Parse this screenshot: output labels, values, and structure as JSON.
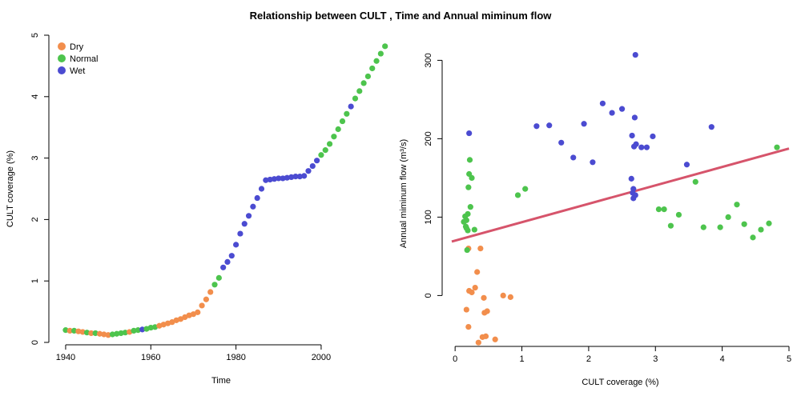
{
  "title": "Relationship between CULT , Time and Annual miminum flow",
  "colors": {
    "Dry": "#F28E4C",
    "Normal": "#4DC44D",
    "Wet": "#4B4BD1",
    "regression": "#D6546B"
  },
  "chart_data": [
    {
      "type": "scatter",
      "xlabel": "Time",
      "ylabel": "CULT coverage (%)",
      "xlim": [
        1937,
        2016
      ],
      "ylim": [
        0,
        5
      ],
      "xticks": [
        1940,
        1960,
        1980,
        2000
      ],
      "yticks": [
        0,
        1,
        2,
        3,
        4,
        5
      ],
      "legend": {
        "placement": "top-left",
        "entries": [
          "Dry",
          "Normal",
          "Wet"
        ]
      },
      "points": [
        {
          "x": 1940,
          "y": 0.2,
          "c": "Normal"
        },
        {
          "x": 1941,
          "y": 0.19,
          "c": "Dry"
        },
        {
          "x": 1942,
          "y": 0.19,
          "c": "Normal"
        },
        {
          "x": 1943,
          "y": 0.18,
          "c": "Dry"
        },
        {
          "x": 1944,
          "y": 0.17,
          "c": "Dry"
        },
        {
          "x": 1945,
          "y": 0.16,
          "c": "Normal"
        },
        {
          "x": 1946,
          "y": 0.15,
          "c": "Dry"
        },
        {
          "x": 1947,
          "y": 0.15,
          "c": "Normal"
        },
        {
          "x": 1948,
          "y": 0.14,
          "c": "Dry"
        },
        {
          "x": 1949,
          "y": 0.13,
          "c": "Dry"
        },
        {
          "x": 1950,
          "y": 0.12,
          "c": "Dry"
        },
        {
          "x": 1951,
          "y": 0.13,
          "c": "Normal"
        },
        {
          "x": 1952,
          "y": 0.14,
          "c": "Normal"
        },
        {
          "x": 1953,
          "y": 0.15,
          "c": "Normal"
        },
        {
          "x": 1954,
          "y": 0.16,
          "c": "Normal"
        },
        {
          "x": 1955,
          "y": 0.17,
          "c": "Dry"
        },
        {
          "x": 1956,
          "y": 0.19,
          "c": "Normal"
        },
        {
          "x": 1957,
          "y": 0.2,
          "c": "Normal"
        },
        {
          "x": 1958,
          "y": 0.21,
          "c": "Wet"
        },
        {
          "x": 1959,
          "y": 0.22,
          "c": "Normal"
        },
        {
          "x": 1960,
          "y": 0.24,
          "c": "Normal"
        },
        {
          "x": 1961,
          "y": 0.25,
          "c": "Normal"
        },
        {
          "x": 1962,
          "y": 0.27,
          "c": "Dry"
        },
        {
          "x": 1963,
          "y": 0.29,
          "c": "Dry"
        },
        {
          "x": 1964,
          "y": 0.31,
          "c": "Dry"
        },
        {
          "x": 1965,
          "y": 0.33,
          "c": "Dry"
        },
        {
          "x": 1966,
          "y": 0.36,
          "c": "Dry"
        },
        {
          "x": 1967,
          "y": 0.38,
          "c": "Dry"
        },
        {
          "x": 1968,
          "y": 0.41,
          "c": "Dry"
        },
        {
          "x": 1969,
          "y": 0.44,
          "c": "Dry"
        },
        {
          "x": 1970,
          "y": 0.46,
          "c": "Dry"
        },
        {
          "x": 1971,
          "y": 0.49,
          "c": "Dry"
        },
        {
          "x": 1972,
          "y": 0.6,
          "c": "Dry"
        },
        {
          "x": 1973,
          "y": 0.7,
          "c": "Dry"
        },
        {
          "x": 1974,
          "y": 0.82,
          "c": "Dry"
        },
        {
          "x": 1975,
          "y": 0.94,
          "c": "Normal"
        },
        {
          "x": 1976,
          "y": 1.05,
          "c": "Normal"
        },
        {
          "x": 1977,
          "y": 1.22,
          "c": "Wet"
        },
        {
          "x": 1978,
          "y": 1.31,
          "c": "Wet"
        },
        {
          "x": 1979,
          "y": 1.41,
          "c": "Wet"
        },
        {
          "x": 1980,
          "y": 1.59,
          "c": "Wet"
        },
        {
          "x": 1981,
          "y": 1.77,
          "c": "Wet"
        },
        {
          "x": 1982,
          "y": 1.93,
          "c": "Wet"
        },
        {
          "x": 1983,
          "y": 2.06,
          "c": "Wet"
        },
        {
          "x": 1984,
          "y": 2.21,
          "c": "Wet"
        },
        {
          "x": 1985,
          "y": 2.35,
          "c": "Wet"
        },
        {
          "x": 1986,
          "y": 2.5,
          "c": "Wet"
        },
        {
          "x": 1987,
          "y": 2.64,
          "c": "Wet"
        },
        {
          "x": 1988,
          "y": 2.65,
          "c": "Wet"
        },
        {
          "x": 1989,
          "y": 2.66,
          "c": "Wet"
        },
        {
          "x": 1990,
          "y": 2.67,
          "c": "Wet"
        },
        {
          "x": 1991,
          "y": 2.67,
          "c": "Wet"
        },
        {
          "x": 1992,
          "y": 2.68,
          "c": "Wet"
        },
        {
          "x": 1993,
          "y": 2.69,
          "c": "Wet"
        },
        {
          "x": 1994,
          "y": 2.7,
          "c": "Wet"
        },
        {
          "x": 1995,
          "y": 2.7,
          "c": "Wet"
        },
        {
          "x": 1996,
          "y": 2.71,
          "c": "Wet"
        },
        {
          "x": 1997,
          "y": 2.79,
          "c": "Wet"
        },
        {
          "x": 1998,
          "y": 2.87,
          "c": "Wet"
        },
        {
          "x": 1999,
          "y": 2.96,
          "c": "Wet"
        },
        {
          "x": 2000,
          "y": 3.05,
          "c": "Normal"
        },
        {
          "x": 2001,
          "y": 3.13,
          "c": "Normal"
        },
        {
          "x": 2002,
          "y": 3.23,
          "c": "Normal"
        },
        {
          "x": 2003,
          "y": 3.35,
          "c": "Normal"
        },
        {
          "x": 2004,
          "y": 3.47,
          "c": "Normal"
        },
        {
          "x": 2005,
          "y": 3.6,
          "c": "Normal"
        },
        {
          "x": 2006,
          "y": 3.72,
          "c": "Normal"
        },
        {
          "x": 2007,
          "y": 3.84,
          "c": "Wet"
        },
        {
          "x": 2008,
          "y": 3.97,
          "c": "Normal"
        },
        {
          "x": 2009,
          "y": 4.09,
          "c": "Normal"
        },
        {
          "x": 2010,
          "y": 4.22,
          "c": "Normal"
        },
        {
          "x": 2011,
          "y": 4.33,
          "c": "Normal"
        },
        {
          "x": 2012,
          "y": 4.46,
          "c": "Normal"
        },
        {
          "x": 2013,
          "y": 4.58,
          "c": "Normal"
        },
        {
          "x": 2014,
          "y": 4.7,
          "c": "Normal"
        },
        {
          "x": 2015,
          "y": 4.82,
          "c": "Normal"
        }
      ]
    },
    {
      "type": "scatter",
      "xlabel": "CULT coverage (%)",
      "ylabel": "Annual miminum flow (m³/s)",
      "xlim": [
        -0.05,
        5.0
      ],
      "ylim": [
        -70,
        330
      ],
      "xticks": [
        0,
        1,
        2,
        3,
        4,
        5
      ],
      "yticks": [
        0,
        100,
        200,
        300
      ],
      "regression": {
        "intercept": 70,
        "slope": 23.5
      },
      "points": [
        {
          "x": 0.2,
          "y": 60,
          "c": "Dry"
        },
        {
          "x": 0.38,
          "y": 60,
          "c": "Dry"
        },
        {
          "x": 0.33,
          "y": 30,
          "c": "Dry"
        },
        {
          "x": 0.3,
          "y": 10,
          "c": "Dry"
        },
        {
          "x": 0.21,
          "y": 6,
          "c": "Dry"
        },
        {
          "x": 0.25,
          "y": 4,
          "c": "Dry"
        },
        {
          "x": 0.72,
          "y": 0,
          "c": "Dry"
        },
        {
          "x": 0.83,
          "y": -2,
          "c": "Dry"
        },
        {
          "x": 0.43,
          "y": -3,
          "c": "Dry"
        },
        {
          "x": 0.17,
          "y": -18,
          "c": "Dry"
        },
        {
          "x": 0.48,
          "y": -20,
          "c": "Dry"
        },
        {
          "x": 0.44,
          "y": -22,
          "c": "Dry"
        },
        {
          "x": 0.2,
          "y": -40,
          "c": "Dry"
        },
        {
          "x": 0.46,
          "y": -52,
          "c": "Dry"
        },
        {
          "x": 0.41,
          "y": -53,
          "c": "Dry"
        },
        {
          "x": 0.6,
          "y": -56,
          "c": "Dry"
        },
        {
          "x": 0.35,
          "y": -60,
          "c": "Dry"
        },
        {
          "x": 0.22,
          "y": 173,
          "c": "Normal"
        },
        {
          "x": 0.21,
          "y": 155,
          "c": "Normal"
        },
        {
          "x": 0.25,
          "y": 150,
          "c": "Normal"
        },
        {
          "x": 0.2,
          "y": 138,
          "c": "Normal"
        },
        {
          "x": 0.23,
          "y": 113,
          "c": "Normal"
        },
        {
          "x": 0.19,
          "y": 104,
          "c": "Normal"
        },
        {
          "x": 0.15,
          "y": 101,
          "c": "Normal"
        },
        {
          "x": 0.17,
          "y": 96,
          "c": "Normal"
        },
        {
          "x": 0.13,
          "y": 94,
          "c": "Normal"
        },
        {
          "x": 0.16,
          "y": 88,
          "c": "Normal"
        },
        {
          "x": 0.17,
          "y": 86,
          "c": "Normal"
        },
        {
          "x": 0.19,
          "y": 83,
          "c": "Normal"
        },
        {
          "x": 0.29,
          "y": 84,
          "c": "Normal"
        },
        {
          "x": 0.18,
          "y": 58,
          "c": "Normal"
        },
        {
          "x": 0.94,
          "y": 128,
          "c": "Normal"
        },
        {
          "x": 1.05,
          "y": 136,
          "c": "Normal"
        },
        {
          "x": 3.05,
          "y": 110,
          "c": "Normal"
        },
        {
          "x": 3.13,
          "y": 110,
          "c": "Normal"
        },
        {
          "x": 3.23,
          "y": 89,
          "c": "Normal"
        },
        {
          "x": 3.35,
          "y": 103,
          "c": "Normal"
        },
        {
          "x": 3.6,
          "y": 145,
          "c": "Normal"
        },
        {
          "x": 3.72,
          "y": 87,
          "c": "Normal"
        },
        {
          "x": 3.97,
          "y": 87,
          "c": "Normal"
        },
        {
          "x": 4.09,
          "y": 100,
          "c": "Normal"
        },
        {
          "x": 4.22,
          "y": 116,
          "c": "Normal"
        },
        {
          "x": 4.33,
          "y": 91,
          "c": "Normal"
        },
        {
          "x": 4.46,
          "y": 74,
          "c": "Normal"
        },
        {
          "x": 4.58,
          "y": 84,
          "c": "Normal"
        },
        {
          "x": 4.7,
          "y": 92,
          "c": "Normal"
        },
        {
          "x": 4.82,
          "y": 189,
          "c": "Normal"
        },
        {
          "x": 0.21,
          "y": 207,
          "c": "Wet"
        },
        {
          "x": 1.22,
          "y": 216,
          "c": "Wet"
        },
        {
          "x": 1.41,
          "y": 217,
          "c": "Wet"
        },
        {
          "x": 1.59,
          "y": 195,
          "c": "Wet"
        },
        {
          "x": 1.77,
          "y": 176,
          "c": "Wet"
        },
        {
          "x": 1.93,
          "y": 219,
          "c": "Wet"
        },
        {
          "x": 2.06,
          "y": 170,
          "c": "Wet"
        },
        {
          "x": 2.21,
          "y": 245,
          "c": "Wet"
        },
        {
          "x": 2.35,
          "y": 233,
          "c": "Wet"
        },
        {
          "x": 2.5,
          "y": 238,
          "c": "Wet"
        },
        {
          "x": 2.64,
          "y": 149,
          "c": "Wet"
        },
        {
          "x": 2.65,
          "y": 204,
          "c": "Wet"
        },
        {
          "x": 2.66,
          "y": 131,
          "c": "Wet"
        },
        {
          "x": 2.67,
          "y": 124,
          "c": "Wet"
        },
        {
          "x": 2.67,
          "y": 136,
          "c": "Wet"
        },
        {
          "x": 2.68,
          "y": 190,
          "c": "Wet"
        },
        {
          "x": 2.69,
          "y": 227,
          "c": "Wet"
        },
        {
          "x": 2.7,
          "y": 307,
          "c": "Wet"
        },
        {
          "x": 2.7,
          "y": 128,
          "c": "Wet"
        },
        {
          "x": 2.71,
          "y": 193,
          "c": "Wet"
        },
        {
          "x": 2.79,
          "y": 189,
          "c": "Wet"
        },
        {
          "x": 2.87,
          "y": 189,
          "c": "Wet"
        },
        {
          "x": 2.96,
          "y": 203,
          "c": "Wet"
        },
        {
          "x": 3.47,
          "y": 167,
          "c": "Wet"
        },
        {
          "x": 3.84,
          "y": 215,
          "c": "Wet"
        }
      ]
    }
  ]
}
